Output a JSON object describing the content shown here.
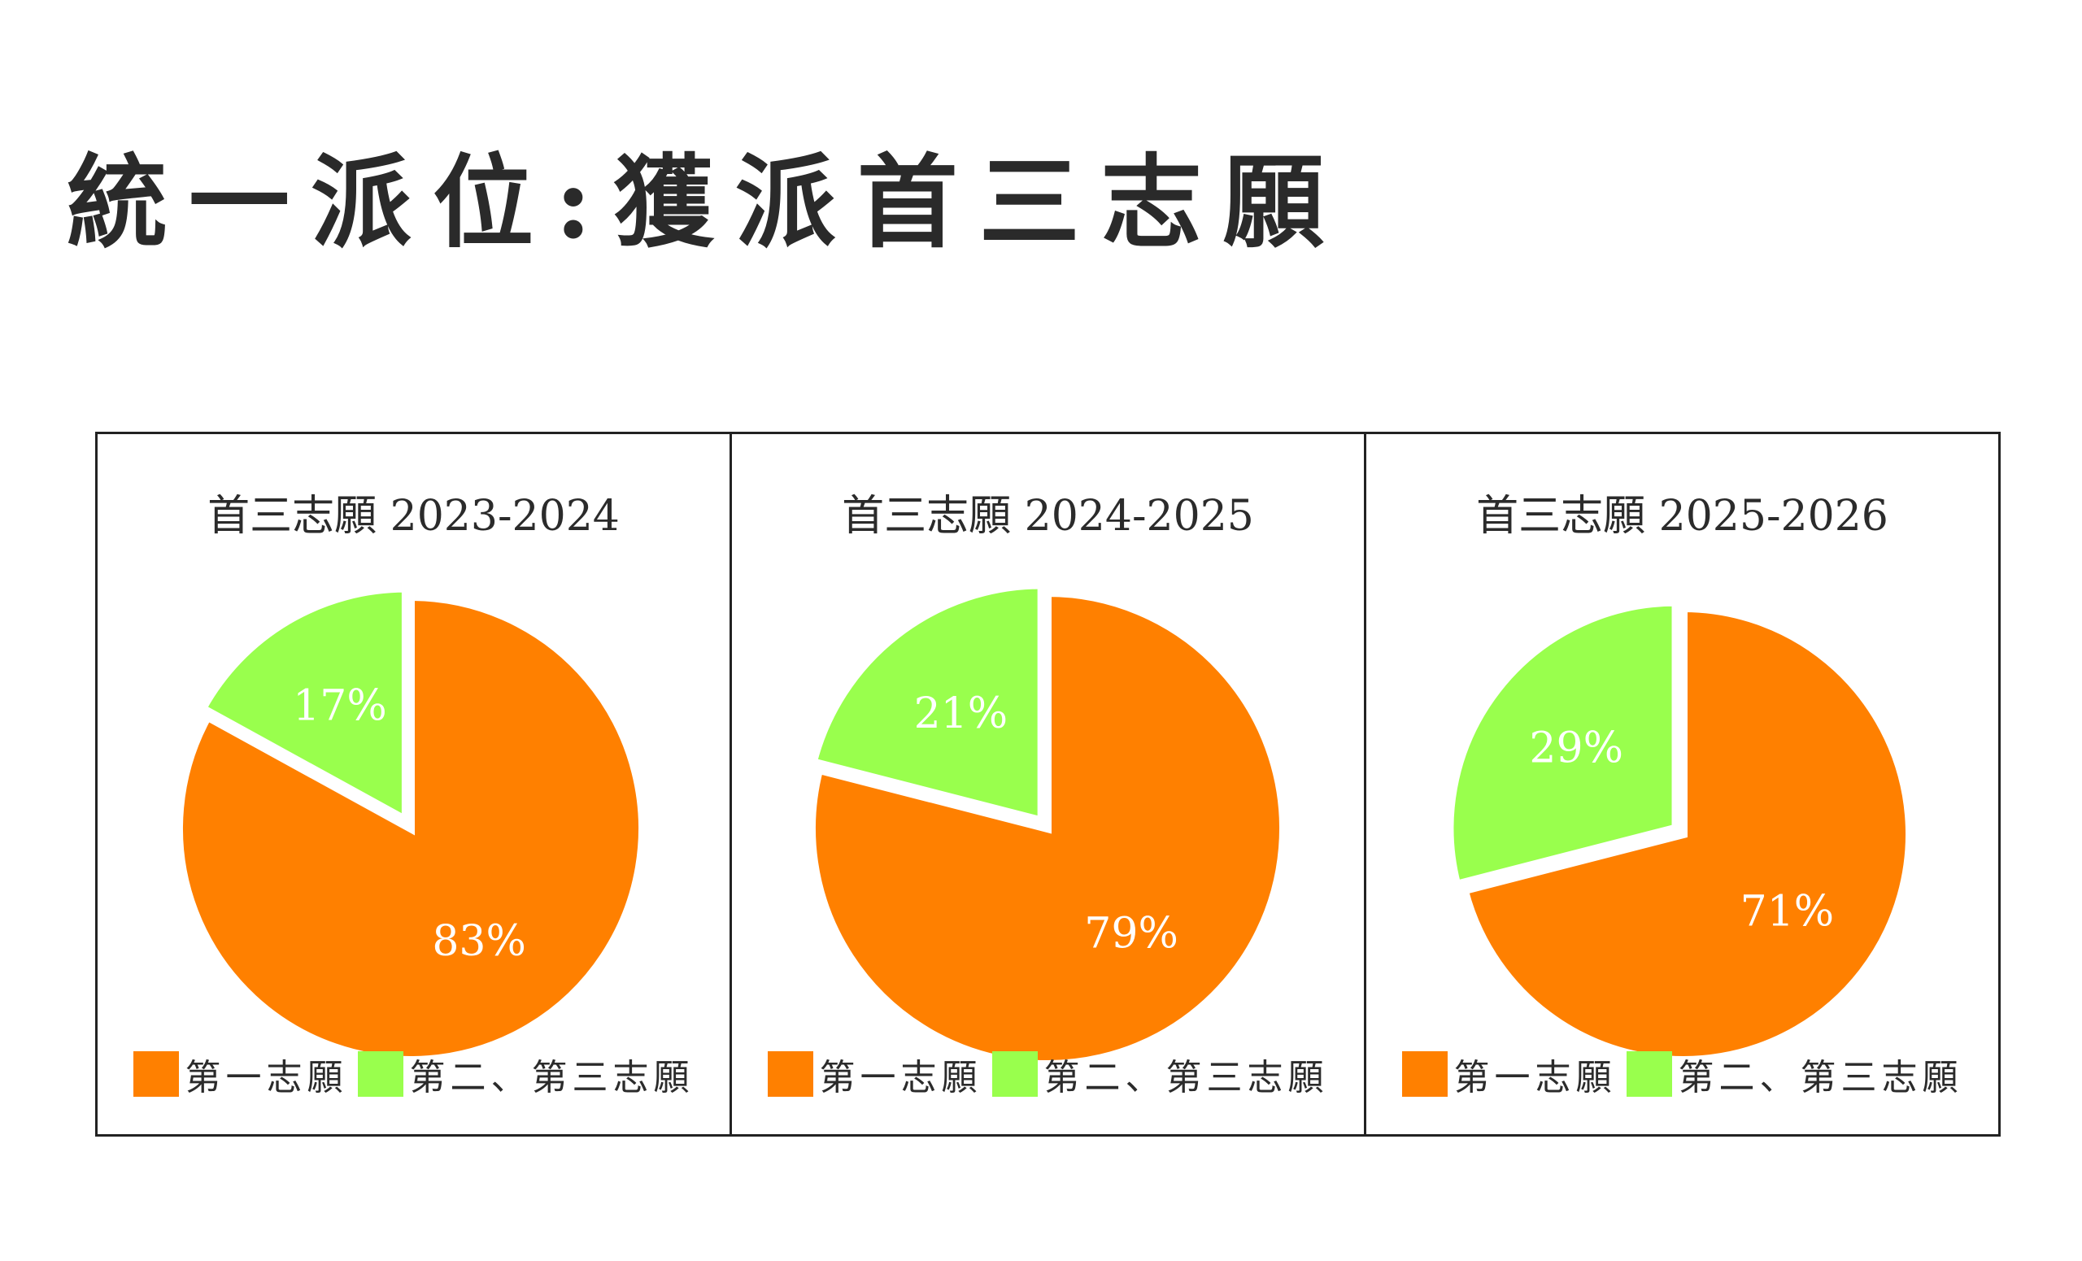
{
  "page": {
    "title": "統一派位:獲派首三志願"
  },
  "colors": {
    "first_choice": "#FF8000",
    "second_third_choice": "#99FF4D",
    "separator": "#FFFFFF"
  },
  "legend": {
    "first_choice": "第一志願",
    "second_third_choice": "第二、第三志願"
  },
  "chart_data": [
    {
      "type": "pie",
      "title": "首三志願  2023-2024",
      "slices": [
        {
          "name": "第一志願",
          "value": 83,
          "label": "83%"
        },
        {
          "name": "第二、第三志願",
          "value": 17,
          "label": "17%"
        }
      ],
      "legend_position": "bottom"
    },
    {
      "type": "pie",
      "title": "首三志願  2024-2025",
      "slices": [
        {
          "name": "第一志願",
          "value": 79,
          "label": "79%"
        },
        {
          "name": "第二、第三志願",
          "value": 21,
          "label": "21%"
        }
      ],
      "legend_position": "bottom"
    },
    {
      "type": "pie",
      "title": "首三志願  2025-2026",
      "slices": [
        {
          "name": "第一志願",
          "value": 71,
          "label": "71%"
        },
        {
          "name": "第二、第三志願",
          "value": 29,
          "label": "29%"
        }
      ],
      "legend_position": "bottom"
    }
  ]
}
